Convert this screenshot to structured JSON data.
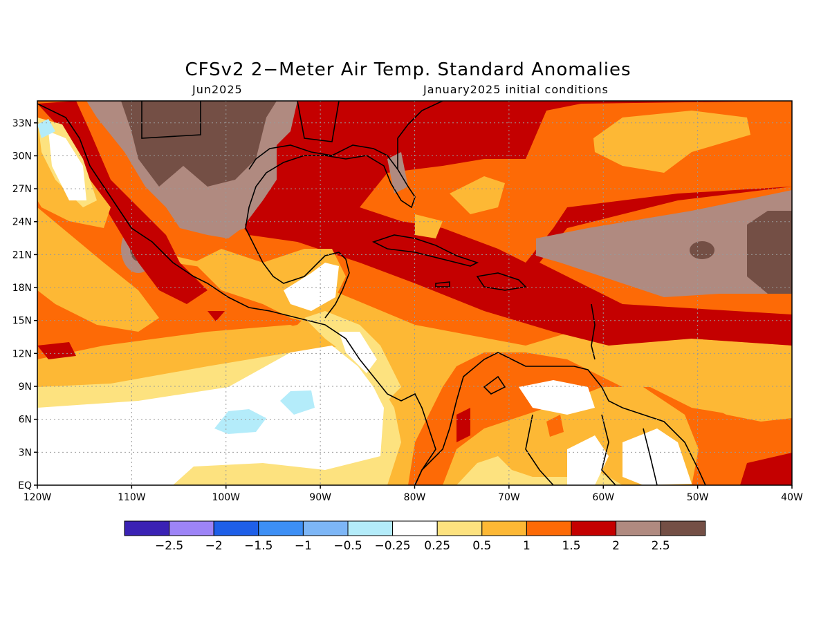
{
  "title": "CFSv2 2−Meter Air Temp. Standard Anomalies",
  "valid_month": "Jun2025",
  "init_label": "January2025 initial conditions",
  "map": {
    "lon_range": [
      -120,
      -40
    ],
    "lat_range": [
      0,
      35
    ],
    "lat_ticks": [
      {
        "lat": 33,
        "label": "33N"
      },
      {
        "lat": 30,
        "label": "30N"
      },
      {
        "lat": 27,
        "label": "27N"
      },
      {
        "lat": 24,
        "label": "24N"
      },
      {
        "lat": 21,
        "label": "21N"
      },
      {
        "lat": 18,
        "label": "18N"
      },
      {
        "lat": 15,
        "label": "15N"
      },
      {
        "lat": 12,
        "label": "12N"
      },
      {
        "lat": 9,
        "label": "9N"
      },
      {
        "lat": 6,
        "label": "6N"
      },
      {
        "lat": 3,
        "label": "3N"
      },
      {
        "lat": 0,
        "label": "EQ"
      }
    ],
    "lon_ticks": [
      {
        "lon": -120,
        "label": "120W"
      },
      {
        "lon": -110,
        "label": "110W"
      },
      {
        "lon": -100,
        "label": "100W"
      },
      {
        "lon": -90,
        "label": "90W"
      },
      {
        "lon": -80,
        "label": "80W"
      },
      {
        "lon": -70,
        "label": "70W"
      },
      {
        "lon": -60,
        "label": "60W"
      },
      {
        "lon": -50,
        "label": "50W"
      },
      {
        "lon": -40,
        "label": "40W"
      }
    ],
    "grid": "dotted"
  },
  "colorbar": {
    "colors": [
      "#3a22b4",
      "#9d84f7",
      "#1e5fe8",
      "#3d8ff5",
      "#7db6f6",
      "#b4ecfa",
      "#ffffff",
      "#fde27f",
      "#fdb835",
      "#fd6a06",
      "#c40000",
      "#b08a80",
      "#744f45"
    ],
    "labels": [
      "−2.5",
      "−2",
      "−1.5",
      "−1",
      "−0.5",
      "−0.25",
      "0.25",
      "0.5",
      "1",
      "1.5",
      "2",
      "2.5"
    ]
  }
}
